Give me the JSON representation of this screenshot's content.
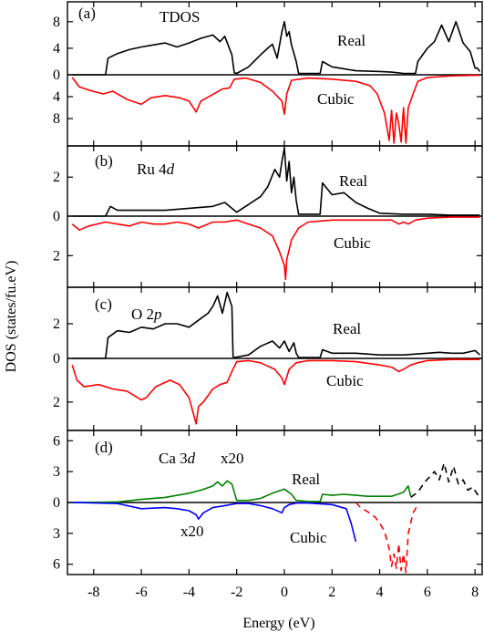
{
  "chart_data": {
    "type": "line",
    "xlabel": "Energy (eV)",
    "ylabel": "DOS (states/fu.eV)",
    "xlim": [
      -9.1,
      8.3
    ],
    "xticks": [
      -8,
      -6,
      -4,
      -2,
      0,
      2,
      4,
      6,
      8
    ],
    "grid": false,
    "panels": [
      {
        "label": "(a)",
        "title": "TDOS",
        "real_label": "Real",
        "cubic_label": "Cubic",
        "ylim": [
          -13,
          11
        ],
        "yticks": [
          {
            "v": 8,
            "t": "8"
          },
          {
            "v": 4,
            "t": "4"
          },
          {
            "v": 0,
            "t": "0"
          },
          {
            "v": -4,
            "t": "4"
          },
          {
            "v": -8,
            "t": "8"
          }
        ],
        "series": [
          {
            "role": "real",
            "color": "#000000",
            "dashed": false,
            "x": [
              -8.9,
              -7.5,
              -7.4,
              -7.0,
              -6.5,
              -6.0,
              -5.5,
              -5.0,
              -4.5,
              -4.0,
              -3.5,
              -3.0,
              -2.7,
              -2.5,
              -2.2,
              -2.1,
              -2.0,
              -1.5,
              -1.0,
              -0.7,
              -0.5,
              -0.3,
              -0.1,
              0.0,
              0.1,
              0.2,
              0.3,
              0.5,
              0.6,
              1.5,
              1.6,
              2.0,
              3.0,
              4.0,
              4.5,
              5.0,
              5.5,
              5.6,
              6.0,
              6.3,
              6.6,
              6.9,
              7.2,
              7.5,
              7.8,
              8.0,
              8.1,
              8.2
            ],
            "y": [
              0,
              0,
              2.5,
              3.2,
              3.8,
              4.2,
              4.5,
              4.8,
              4.2,
              4.8,
              5.5,
              6.0,
              5.0,
              5.8,
              3.0,
              0.3,
              0.2,
              1.2,
              3.0,
              4.0,
              4.6,
              2.5,
              6.5,
              8.0,
              5.8,
              6.5,
              4.5,
              2.0,
              0.2,
              0.2,
              2.0,
              1.2,
              0.6,
              0.5,
              0.4,
              0.2,
              0.2,
              2.0,
              4.0,
              5.0,
              7.5,
              5.0,
              8.0,
              4.8,
              3.5,
              1.0,
              1.0,
              0.5
            ]
          },
          {
            "role": "cubic",
            "color": "#ff0000",
            "dashed": false,
            "x": [
              -8.9,
              -8.6,
              -8.2,
              -7.6,
              -7.2,
              -6.6,
              -6.0,
              -5.6,
              -5.0,
              -4.4,
              -4.0,
              -3.7,
              -3.5,
              -3.0,
              -2.6,
              -2.3,
              -2.1,
              -1.6,
              -1.0,
              -0.5,
              -0.1,
              0.0,
              0.1,
              0.3,
              1.0,
              2.0,
              3.0,
              3.6,
              3.9,
              4.2,
              4.4,
              4.5,
              4.6,
              4.7,
              4.8,
              4.9,
              5.0,
              5.1,
              5.2,
              5.4,
              5.6,
              6.0,
              7.0,
              8.0,
              8.2
            ],
            "y": [
              -0.5,
              -2.2,
              -2.8,
              -3.5,
              -3.0,
              -4.5,
              -5.4,
              -4.2,
              -3.8,
              -4.2,
              -4.8,
              -6.8,
              -4.8,
              -3.6,
              -2.6,
              -2.4,
              -0.8,
              -0.6,
              -1.4,
              -3.0,
              -4.8,
              -7.2,
              -3.5,
              -1.0,
              -0.6,
              -0.8,
              -1.2,
              -2.0,
              -3.5,
              -7.0,
              -12.0,
              -6.5,
              -12.5,
              -7.0,
              -9.0,
              -12.3,
              -6.0,
              -12.5,
              -6.0,
              -3.5,
              -1.2,
              -0.5,
              -0.2,
              -0.1,
              -0.1
            ]
          }
        ]
      },
      {
        "label": "(b)",
        "title": "Ru 4",
        "title_italic": "d",
        "real_label": "Real",
        "cubic_label": "Cubic",
        "ylim": [
          -3.6,
          3.6
        ],
        "yticks": [
          {
            "v": 2,
            "t": "2"
          },
          {
            "v": 0,
            "t": "0"
          },
          {
            "v": -2,
            "t": "2"
          }
        ],
        "series": [
          {
            "role": "real",
            "color": "#000000",
            "dashed": false,
            "x": [
              -8.9,
              -7.5,
              -7.3,
              -7.0,
              -6.0,
              -5.0,
              -4.0,
              -3.0,
              -2.5,
              -2.2,
              -2.0,
              -1.5,
              -1.0,
              -0.7,
              -0.4,
              -0.2,
              -0.1,
              0.0,
              0.1,
              0.2,
              0.3,
              0.4,
              0.5,
              0.6,
              1.5,
              1.6,
              2.0,
              2.5,
              3.0,
              3.5,
              4.0,
              5.0,
              6.0,
              7.0,
              8.0,
              8.2
            ],
            "y": [
              0,
              0,
              0.5,
              0.3,
              0.3,
              0.3,
              0.4,
              0.5,
              0.7,
              0.4,
              0.2,
              0.6,
              1.0,
              1.5,
              2.4,
              2.0,
              2.8,
              3.5,
              1.8,
              2.8,
              1.2,
              2.0,
              0.8,
              0.1,
              0.1,
              1.7,
              1.1,
              1.2,
              0.7,
              0.4,
              0.15,
              0.1,
              0.1,
              0.05,
              0.05,
              0.05
            ]
          },
          {
            "role": "cubic",
            "color": "#ff0000",
            "dashed": false,
            "x": [
              -8.9,
              -8.6,
              -8.2,
              -7.5,
              -7.0,
              -6.5,
              -6.0,
              -5.5,
              -5.0,
              -4.5,
              -4.0,
              -3.6,
              -3.0,
              -2.5,
              -2.0,
              -1.5,
              -1.0,
              -0.5,
              -0.2,
              0.0,
              0.05,
              0.1,
              0.3,
              0.6,
              1.0,
              2.0,
              3.0,
              4.0,
              4.5,
              4.8,
              5.0,
              5.2,
              5.5,
              6.0,
              7.0,
              8.0,
              8.2
            ],
            "y": [
              -0.4,
              -0.7,
              -0.5,
              -0.3,
              -0.4,
              -0.5,
              -0.3,
              -0.4,
              -0.4,
              -0.3,
              -0.4,
              -0.6,
              -0.3,
              -0.3,
              -0.2,
              -0.4,
              -0.6,
              -1.0,
              -1.8,
              -2.5,
              -3.2,
              -2.2,
              -1.2,
              -0.6,
              -0.3,
              -0.2,
              -0.2,
              -0.2,
              -0.2,
              -0.4,
              -0.3,
              -0.4,
              -0.2,
              -0.1,
              -0.05,
              -0.05,
              -0.05
            ]
          }
        ]
      },
      {
        "label": "(c)",
        "title": "O 2",
        "title_italic": "p",
        "real_label": "Real",
        "cubic_label": "Cubic",
        "ylim": [
          -3.3,
          4.1
        ],
        "yticks": [
          {
            "v": 2,
            "t": "2"
          },
          {
            "v": 0,
            "t": "0"
          },
          {
            "v": -2,
            "t": "2"
          }
        ],
        "series": [
          {
            "role": "real",
            "color": "#000000",
            "dashed": false,
            "x": [
              -8.9,
              -7.5,
              -7.4,
              -7.0,
              -6.5,
              -6.0,
              -5.5,
              -5.0,
              -4.5,
              -4.0,
              -3.5,
              -3.2,
              -3.0,
              -2.8,
              -2.6,
              -2.4,
              -2.2,
              -2.15,
              -2.1,
              -1.5,
              -1.0,
              -0.5,
              -0.2,
              0.0,
              0.2,
              0.4,
              0.5,
              0.6,
              1.5,
              1.6,
              2.0,
              3.0,
              4.0,
              5.0,
              6.0,
              6.5,
              7.0,
              7.5,
              8.0,
              8.2
            ],
            "y": [
              0,
              0,
              1.2,
              1.6,
              1.5,
              1.8,
              1.7,
              2.0,
              2.0,
              1.8,
              2.3,
              2.6,
              3.0,
              3.6,
              2.6,
              3.8,
              3.0,
              0.1,
              0.05,
              0.2,
              0.7,
              1.0,
              0.6,
              1.0,
              0.4,
              0.9,
              0.3,
              0.05,
              0.05,
              0.5,
              0.3,
              0.3,
              0.2,
              0.2,
              0.3,
              0.35,
              0.3,
              0.3,
              0.45,
              0.2
            ]
          },
          {
            "role": "cubic",
            "color": "#ff0000",
            "dashed": false,
            "x": [
              -8.9,
              -8.7,
              -8.4,
              -7.8,
              -7.2,
              -6.6,
              -6.0,
              -5.8,
              -5.4,
              -4.8,
              -4.4,
              -4.0,
              -3.8,
              -3.7,
              -3.6,
              -3.4,
              -3.0,
              -2.7,
              -2.4,
              -2.2,
              -2.0,
              -1.5,
              -1.0,
              -0.4,
              -0.1,
              0.0,
              0.2,
              0.5,
              1.0,
              2.0,
              3.0,
              4.0,
              4.5,
              4.8,
              5.0,
              5.3,
              5.6,
              6.0,
              7.0,
              8.0,
              8.2
            ],
            "y": [
              -0.3,
              -1.0,
              -1.3,
              -1.2,
              -1.4,
              -1.5,
              -1.9,
              -1.8,
              -1.3,
              -1.0,
              -1.2,
              -1.8,
              -2.6,
              -3.0,
              -2.2,
              -2.0,
              -1.4,
              -1.2,
              -1.1,
              -0.6,
              -0.15,
              -0.1,
              -0.2,
              -0.5,
              -0.9,
              -1.2,
              -0.5,
              -0.2,
              -0.1,
              -0.1,
              -0.15,
              -0.3,
              -0.4,
              -0.6,
              -0.5,
              -0.3,
              -0.2,
              -0.1,
              -0.05,
              -0.05,
              -0.05
            ]
          }
        ]
      },
      {
        "label": "(d)",
        "title": "Ca 3",
        "title_italic": "d",
        "real_label": "Real",
        "cubic_label": "Cubic",
        "real_scale": "x20",
        "cubic_scale": "x20",
        "ylim": [
          -7.0,
          7.0
        ],
        "yticks": [
          {
            "v": 6,
            "t": "6"
          },
          {
            "v": 3,
            "t": "3"
          },
          {
            "v": 0,
            "t": "0"
          },
          {
            "v": -3,
            "t": "3"
          },
          {
            "v": -6,
            "t": "6"
          }
        ],
        "series": [
          {
            "role": "real",
            "color": "#008000",
            "dashed": false,
            "x": [
              -8.9,
              -7.0,
              -6.0,
              -5.0,
              -4.0,
              -3.5,
              -3.0,
              -2.8,
              -2.6,
              -2.4,
              -2.2,
              -2.0,
              -1.5,
              -1.0,
              -0.5,
              0.0,
              0.3,
              0.5,
              1.0,
              1.5,
              1.6,
              2.0,
              2.5,
              3.0,
              3.5,
              4.0,
              4.5,
              5.0,
              5.2,
              5.3
            ],
            "y": [
              0,
              0.05,
              0.3,
              0.5,
              0.9,
              1.2,
              1.6,
              2.0,
              1.6,
              2.1,
              1.8,
              0.2,
              0.2,
              0.4,
              0.9,
              1.3,
              0.8,
              0.2,
              0.1,
              0.1,
              0.8,
              0.7,
              0.8,
              0.7,
              0.6,
              0.6,
              0.6,
              1.0,
              1.6,
              0.6
            ]
          },
          {
            "role": "cubic",
            "color": "#0000ff",
            "dashed": false,
            "x": [
              -8.9,
              -7.0,
              -6.0,
              -5.0,
              -4.5,
              -4.0,
              -3.7,
              -3.6,
              -3.4,
              -3.0,
              -2.5,
              -2.0,
              -1.5,
              -1.0,
              -0.5,
              -0.1,
              0.0,
              0.2,
              0.5,
              1.0,
              2.0,
              2.6,
              2.8,
              3.0
            ],
            "y": [
              0,
              -0.1,
              -0.6,
              -0.5,
              -0.6,
              -0.8,
              -1.2,
              -1.6,
              -1.0,
              -0.5,
              -0.3,
              -0.1,
              -0.1,
              -0.3,
              -0.6,
              -1.0,
              -0.5,
              -0.2,
              -0.05,
              -0.05,
              -0.2,
              -0.6,
              -2.0,
              -3.8
            ]
          },
          {
            "role": "real",
            "color": "#000000",
            "dashed": true,
            "x": [
              5.3,
              5.6,
              5.9,
              6.1,
              6.3,
              6.5,
              6.7,
              6.9,
              7.1,
              7.3,
              7.5,
              7.7,
              7.9,
              8.1,
              8.2
            ],
            "y": [
              0.5,
              1.0,
              2.0,
              2.5,
              3.0,
              2.2,
              3.8,
              2.0,
              3.5,
              1.8,
              2.2,
              1.2,
              1.5,
              0.8,
              0.6
            ]
          },
          {
            "role": "cubic",
            "color": "#ff0000",
            "dashed": true,
            "x": [
              3.0,
              3.2,
              3.5,
              3.8,
              4.0,
              4.2,
              4.4,
              4.5,
              4.6,
              4.7,
              4.8,
              4.9,
              5.0,
              5.1,
              5.2,
              5.4,
              5.6
            ],
            "y": [
              0,
              -0.5,
              -0.9,
              -1.4,
              -2.0,
              -2.8,
              -4.5,
              -6.2,
              -5.0,
              -6.4,
              -4.0,
              -6.6,
              -5.0,
              -6.8,
              -3.0,
              -1.0,
              -0.2
            ]
          }
        ]
      }
    ]
  }
}
